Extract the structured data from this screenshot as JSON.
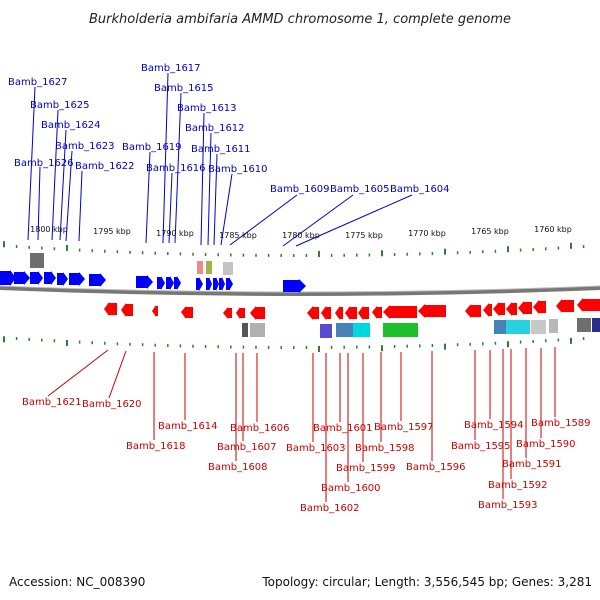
{
  "title": "Burkholderia ambifaria AMMD chromosome 1, complete genome",
  "footer": {
    "accession": "Accession: NC_008390",
    "topology": "Topology: circular; Length: 3,556,545 bp; Genes: 3,281"
  },
  "colors": {
    "forward": "#0000ff",
    "reverse": "#ff0000",
    "top_label": "#0000cc",
    "bottom_label": "#cc0000",
    "tick": "#2e7d32"
  },
  "kbp_labels": [
    {
      "text": "1800 kbp"
    },
    {
      "text": "1795 kbp"
    },
    {
      "text": "1790 kbp"
    },
    {
      "text": "1785 kbp"
    },
    {
      "text": "1780 kbp"
    },
    {
      "text": "1775 kbp"
    },
    {
      "text": "1770 kbp"
    },
    {
      "text": "1765 kbp"
    },
    {
      "text": "1760 kbp"
    }
  ],
  "top_genes": [
    {
      "label": "Bamb_1627"
    },
    {
      "label": "Bamb_1625"
    },
    {
      "label": "Bamb_1624"
    },
    {
      "label": "Bamb_1623"
    },
    {
      "label": "Bamb_1626"
    },
    {
      "label": "Bamb_1622"
    },
    {
      "label": "Bamb_1617"
    },
    {
      "label": "Bamb_1615"
    },
    {
      "label": "Bamb_1613"
    },
    {
      "label": "Bamb_1612"
    },
    {
      "label": "Bamb_1619"
    },
    {
      "label": "Bamb_1611"
    },
    {
      "label": "Bamb_1616"
    },
    {
      "label": "Bamb_1610"
    },
    {
      "label": "Bamb_1609"
    },
    {
      "label": "Bamb_1605"
    },
    {
      "label": "Bamb_1604"
    }
  ],
  "bottom_genes": [
    {
      "label": "Bamb_1621"
    },
    {
      "label": "Bamb_1620"
    },
    {
      "label": "Bamb_1618"
    },
    {
      "label": "Bamb_1614"
    },
    {
      "label": "Bamb_1607"
    },
    {
      "label": "Bamb_1606"
    },
    {
      "label": "Bamb_1608"
    },
    {
      "label": "Bamb_1603"
    },
    {
      "label": "Bamb_1601"
    },
    {
      "label": "Bamb_1602"
    },
    {
      "label": "Bamb_1600"
    },
    {
      "label": "Bamb_1599"
    },
    {
      "label": "Bamb_1598"
    },
    {
      "label": "Bamb_1597"
    },
    {
      "label": "Bamb_1596"
    },
    {
      "label": "Bamb_1594"
    },
    {
      "label": "Bamb_1595"
    },
    {
      "label": "Bamb_1593"
    },
    {
      "label": "Bamb_1592"
    },
    {
      "label": "Bamb_1591"
    },
    {
      "label": "Bamb_1590"
    },
    {
      "label": "Bamb_1589"
    }
  ]
}
